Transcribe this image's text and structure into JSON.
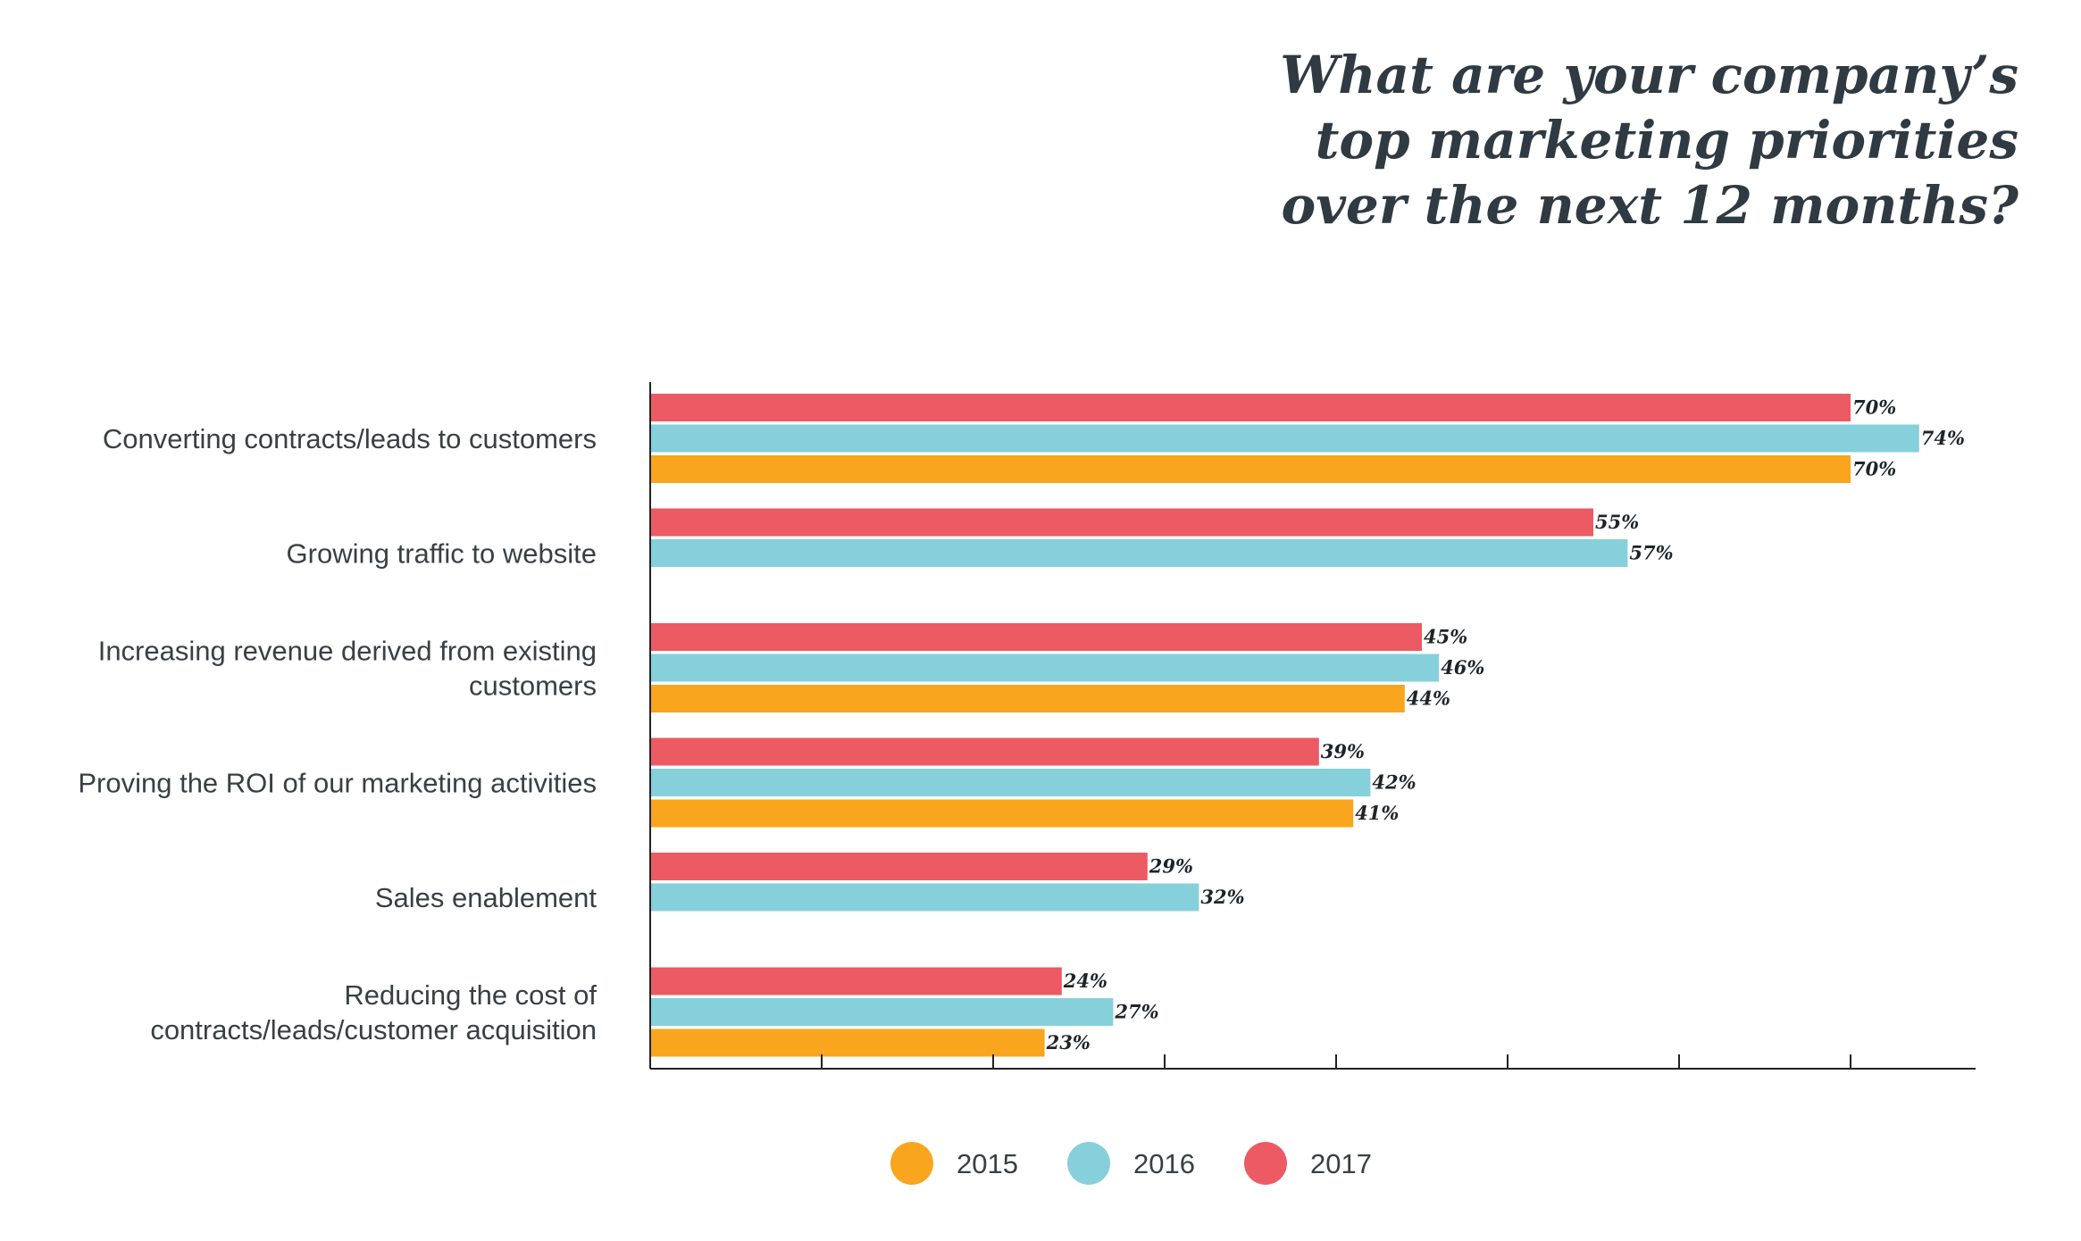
{
  "chart_data": {
    "type": "bar",
    "orientation": "horizontal",
    "title_lines": [
      "What are your company’s",
      "top marketing priorities",
      "over the next 12 months?"
    ],
    "categories": [
      [
        "Converting contracts/leads to customers"
      ],
      [
        "Growing traffic to website"
      ],
      [
        "Increasing revenue derived from existing",
        "customers"
      ],
      [
        "Proving the ROI of our marketing activities"
      ],
      [
        "Sales enablement"
      ],
      [
        "Reducing the cost of",
        "contracts/leads/customer acquisition"
      ]
    ],
    "series": [
      {
        "name": "2017",
        "color": "#ec5a64",
        "values": [
          70,
          55,
          45,
          39,
          29,
          24
        ],
        "labels": [
          "70%",
          "55%",
          "45%",
          "39%",
          "29%",
          "24%"
        ]
      },
      {
        "name": "2016",
        "color": "#86d0dc",
        "values": [
          74,
          57,
          46,
          42,
          32,
          27
        ],
        "labels": [
          "74%",
          "57%",
          "46%",
          "42%",
          "32%",
          "27%"
        ]
      },
      {
        "name": "2015",
        "color": "#f9a51e",
        "values": [
          70,
          null,
          44,
          41,
          null,
          23
        ],
        "labels": [
          "70%",
          "",
          "44%",
          "41%",
          "",
          "23%"
        ]
      }
    ],
    "legend": {
      "position": "bottom",
      "items": [
        {
          "name": "2015",
          "color": "#f9a51e"
        },
        {
          "name": "2016",
          "color": "#86d0dc"
        },
        {
          "name": "2017",
          "color": "#ec5a64"
        }
      ]
    },
    "xlim": [
      0,
      80
    ],
    "grid": false
  }
}
